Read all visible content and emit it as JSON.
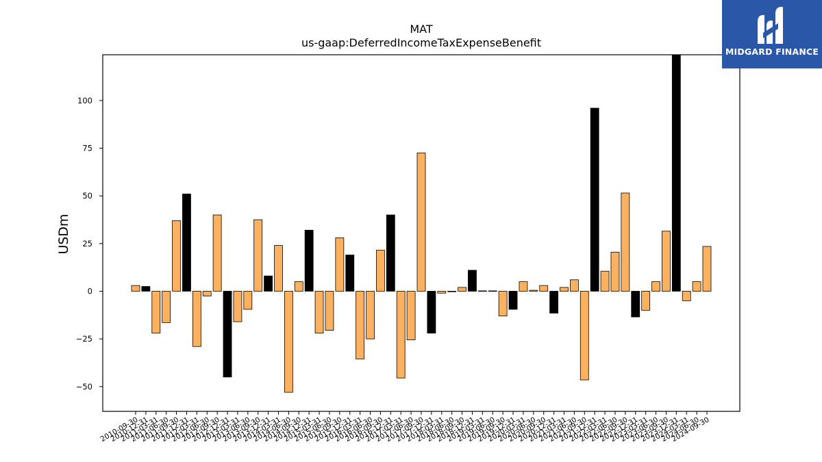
{
  "logo": {
    "text": "MIDGARD FINANCE",
    "icon": "midgard-m-logo",
    "background": "#2a57a8"
  },
  "chart_data": {
    "type": "bar",
    "title": "MAT",
    "subtitle": "us-gaap:DeferredIncomeTaxExpenseBenefit",
    "xlabel": "",
    "ylabel": "USDm",
    "ylim": [
      -63,
      124
    ],
    "yticks": [
      -50,
      -25,
      0,
      25,
      50,
      75,
      100
    ],
    "grid": false,
    "colors": {
      "quarter": "#fbb160",
      "annual": "#000000"
    },
    "categories": [
      "2010-09-30",
      "2010-12-31",
      "2011-03-31",
      "2011-06-30",
      "2011-09-30",
      "2011-12-31",
      "2012-03-31",
      "2012-06-30",
      "2012-09-30",
      "2012-12-31",
      "2013-03-31",
      "2013-06-30",
      "2013-09-30",
      "2013-12-31",
      "2014-03-31",
      "2014-06-30",
      "2014-09-30",
      "2014-12-31",
      "2015-03-31",
      "2015-06-30",
      "2015-09-30",
      "2015-12-31",
      "2016-03-31",
      "2016-06-30",
      "2016-09-30",
      "2016-12-31",
      "2017-03-31",
      "2017-06-30",
      "2017-09-30",
      "2017-12-31",
      "2018-03-31",
      "2018-06-30",
      "2018-09-30",
      "2018-12-31",
      "2019-03-31",
      "2019-06-30",
      "2019-09-30",
      "2019-12-31",
      "2020-03-31",
      "2020-06-30",
      "2020-09-30",
      "2020-12-31",
      "2021-03-31",
      "2021-06-30",
      "2021-09-30",
      "2021-12-31",
      "2022-03-31",
      "2022-06-30",
      "2022-09-30",
      "2022-12-31",
      "2023-03-31",
      "2023-06-30",
      "2023-09-30",
      "2023-12-31",
      "2024-03-31",
      "2024-06-30",
      "2024-09-30"
    ],
    "values": [
      3,
      2.5,
      -22,
      -16.5,
      37,
      51,
      -29,
      -2.5,
      40,
      -45,
      -16,
      -9.5,
      37.5,
      8,
      24,
      -53,
      5,
      32,
      -22,
      -20.5,
      28,
      19,
      -35.5,
      -25,
      21.5,
      40,
      -45.5,
      -25.5,
      72.5,
      -22,
      -1,
      -0.3,
      2,
      11,
      0.2,
      0.2,
      -13,
      -9.5,
      5,
      0.5,
      3,
      -11.5,
      2,
      6,
      -46.5,
      96,
      10.5,
      20.5,
      51.5,
      -13.5,
      -10,
      5,
      31.5,
      124,
      -5,
      5,
      23.5
    ],
    "annual": [
      false,
      true,
      false,
      false,
      false,
      true,
      false,
      false,
      false,
      true,
      false,
      false,
      false,
      true,
      false,
      false,
      false,
      true,
      false,
      false,
      false,
      true,
      false,
      false,
      false,
      true,
      false,
      false,
      false,
      true,
      false,
      false,
      false,
      true,
      false,
      false,
      false,
      true,
      false,
      false,
      false,
      true,
      false,
      false,
      false,
      true,
      false,
      false,
      false,
      true,
      false,
      false,
      false,
      true,
      false,
      false,
      false
    ]
  }
}
